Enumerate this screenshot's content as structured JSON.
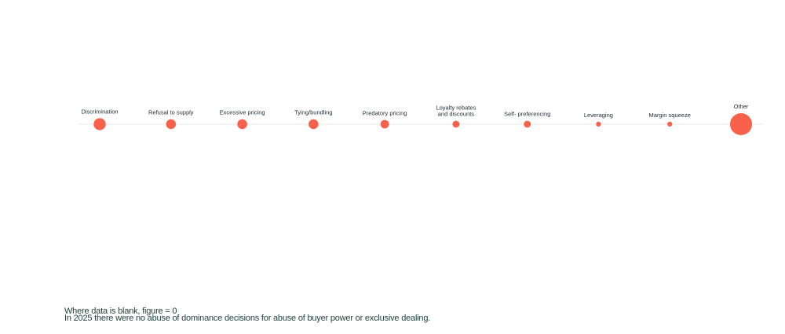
{
  "chart_data": {
    "type": "bubble",
    "title": "",
    "xlabel": "",
    "ylabel": "",
    "categories": [
      [
        "Discrimination"
      ],
      [
        "Refusal to supply"
      ],
      [
        "Excessive pricing"
      ],
      [
        "Tying/bundling"
      ],
      [
        "Predatory pricing"
      ],
      [
        "Loyalty rebates",
        "and discounts"
      ],
      [
        "Self- preferencing"
      ],
      [
        "Leveraging"
      ],
      [
        "Margin squeeze"
      ],
      [
        "Other"
      ]
    ],
    "series": [
      {
        "values": [
          6,
          4,
          4,
          4,
          3,
          2,
          2,
          1,
          1,
          20
        ]
      }
    ],
    "grid": false,
    "legend": "none",
    "colors": {
      "bubble": "#f9614b",
      "baseline": "#e8e8e8",
      "label": "#1f2a33"
    }
  },
  "notes": {
    "line1": "Where data is blank, figure = 0",
    "line2": "In 2025 there were no abuse of dominance decisions for abuse of buyer power or exclusive dealing."
  },
  "colors": {
    "notes_text": "#1e3d36"
  }
}
